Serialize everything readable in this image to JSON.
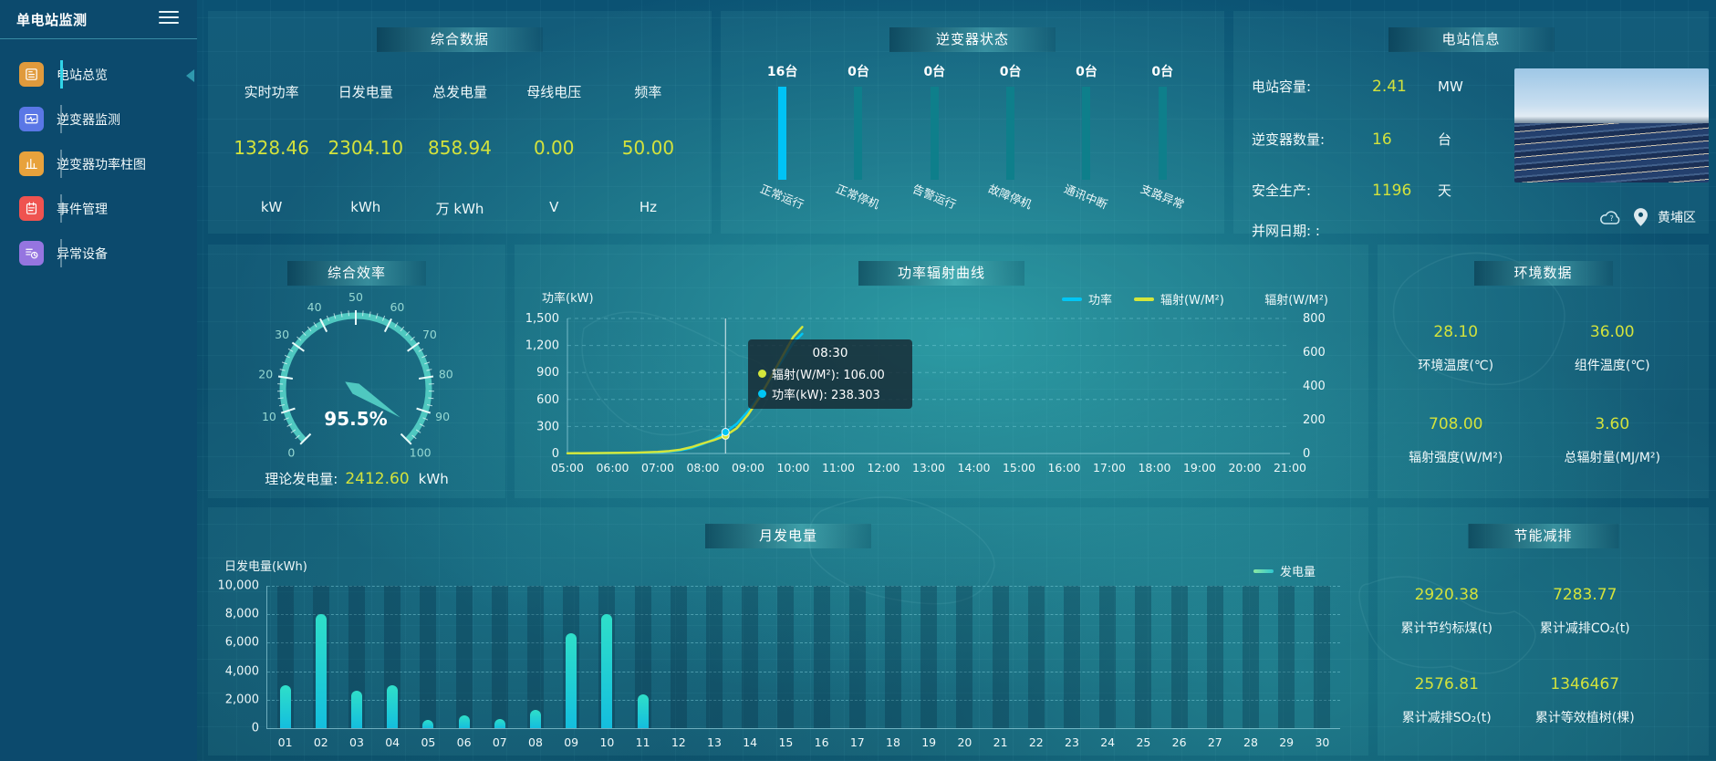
{
  "app": {
    "title": "单电站监测"
  },
  "theme": {
    "value_yellow": "#d3e23c",
    "accent_cyan": "#00c3f6",
    "gauge_teal": "#4fc8c0",
    "bar_cyan_top": "#2fdfc9",
    "bar_cyan_bottom": "#14bede"
  },
  "sidebar": {
    "items": [
      {
        "label": "电站总览",
        "icon": "overview-icon",
        "color": "#e09a3c",
        "active": true
      },
      {
        "label": "逆变器监测",
        "icon": "inverter-monitor-icon",
        "color": "#5a77e6",
        "active": false
      },
      {
        "label": "逆变器功率柱图",
        "icon": "power-bars-icon",
        "color": "#e8a23c",
        "active": false
      },
      {
        "label": "事件管理",
        "icon": "events-icon",
        "color": "#ef5350",
        "active": false
      },
      {
        "label": "异常设备",
        "icon": "abnormal-devices-icon",
        "color": "#9575e0",
        "active": false
      }
    ]
  },
  "summary": {
    "title": "综合数据",
    "metrics": [
      {
        "label": "实时功率",
        "value": "1328.46",
        "unit": "kW"
      },
      {
        "label": "日发电量",
        "value": "2304.10",
        "unit": "kWh"
      },
      {
        "label": "总发电量",
        "value": "858.94",
        "unit": "万 kWh"
      },
      {
        "label": "母线电压",
        "value": "0.00",
        "unit": "V"
      },
      {
        "label": "频率",
        "value": "50.00",
        "unit": "Hz"
      }
    ]
  },
  "inverter_status": {
    "title": "逆变器状态",
    "unit_suffix": "台",
    "chart_data": {
      "type": "bar",
      "categories": [
        "正常运行",
        "正常停机",
        "告警运行",
        "故障停机",
        "通讯中断",
        "支路异常"
      ],
      "values": [
        16,
        0,
        0,
        0,
        0,
        0
      ],
      "active_color": "#00c3f6",
      "inactive_color": "#0e7f8b"
    }
  },
  "station_info": {
    "title": "电站信息",
    "rows": [
      {
        "label": "电站容量:",
        "value": "2.41",
        "unit": "MW"
      },
      {
        "label": "逆变器数量:",
        "value": "16",
        "unit": "台"
      },
      {
        "label": "安全生产:",
        "value": "1196",
        "unit": "天"
      },
      {
        "label": "并网日期: :",
        "value": "",
        "unit": ""
      }
    ],
    "location": "黄埔区"
  },
  "efficiency": {
    "title": "综合效率",
    "chart_data": {
      "type": "gauge",
      "value": 95.5,
      "display": "95.5%",
      "min": 0,
      "max": 100,
      "tick_labels": [
        0,
        10,
        20,
        30,
        40,
        50,
        60,
        70,
        80,
        90,
        100
      ]
    },
    "theory": {
      "label": "理论发电量:",
      "value": "2412.60",
      "unit": "kWh"
    }
  },
  "power_curve": {
    "title": "功率辐射曲线",
    "chart_data": {
      "type": "line",
      "x_ticks": [
        "05:00",
        "06:00",
        "07:00",
        "08:00",
        "09:00",
        "10:00",
        "11:00",
        "12:00",
        "13:00",
        "14:00",
        "15:00",
        "16:00",
        "17:00",
        "18:00",
        "19:00",
        "20:00",
        "21:00"
      ],
      "left_axis": {
        "label": "功率(kW)",
        "min": 0,
        "max": 1500,
        "step": 300
      },
      "right_axis": {
        "label": "辐射(W/M²)",
        "min": 0,
        "max": 800,
        "step": 200
      },
      "legend": [
        "功率",
        "辐射(W/M²)"
      ],
      "series": [
        {
          "name": "功率",
          "color": "#00c6f5",
          "axis": "left",
          "hours": [
            5,
            5.5,
            6,
            6.5,
            7,
            7.25,
            7.5,
            7.75,
            8,
            8.25,
            8.5,
            8.75,
            9,
            9.25,
            9.5,
            9.75,
            10,
            10.2
          ],
          "values": [
            2,
            3,
            5,
            8,
            14,
            22,
            35,
            60,
            105,
            160,
            238.3,
            330,
            470,
            640,
            830,
            1030,
            1230,
            1330
          ]
        },
        {
          "name": "辐射(W/M²)",
          "color": "#d4e63b",
          "axis": "right",
          "hours": [
            5,
            5.5,
            6,
            6.5,
            7,
            7.25,
            7.5,
            7.75,
            8,
            8.25,
            8.5,
            8.75,
            9,
            9.25,
            9.5,
            9.75,
            10,
            10.2
          ],
          "values": [
            1,
            2,
            3,
            5,
            9,
            14,
            22,
            38,
            60,
            80,
            106,
            150,
            230,
            330,
            450,
            570,
            690,
            750
          ]
        }
      ]
    },
    "tooltip": {
      "time": "08:30",
      "hour": 8.5,
      "items": [
        {
          "name": "辐射(W/M²)",
          "value": "106.00",
          "color": "#d4e63b",
          "raw": 106
        },
        {
          "name": "功率(kW)",
          "value": "238.303",
          "color": "#00c6f5",
          "raw": 238.303
        }
      ]
    }
  },
  "environment": {
    "title": "环境数据",
    "metrics": [
      {
        "value": "28.10",
        "label": "环境温度(℃)"
      },
      {
        "value": "36.00",
        "label": "组件温度(℃)"
      },
      {
        "value": "708.00",
        "label": "辐射强度(W/M²)"
      },
      {
        "value": "3.60",
        "label": "总辐射量(MJ/M²)"
      }
    ]
  },
  "monthly": {
    "title": "月发电量",
    "chart_data": {
      "type": "bar",
      "ylabel": "日发电量(kWh)",
      "ylim": [
        0,
        10000
      ],
      "ytick_step": 2000,
      "legend": "发电量",
      "categories": [
        "01",
        "02",
        "03",
        "04",
        "05",
        "06",
        "07",
        "08",
        "09",
        "10",
        "11",
        "12",
        "13",
        "14",
        "15",
        "16",
        "17",
        "18",
        "19",
        "20",
        "21",
        "22",
        "23",
        "24",
        "25",
        "26",
        "27",
        "28",
        "29",
        "30"
      ],
      "values": [
        3000,
        8000,
        2600,
        3000,
        600,
        900,
        650,
        1300,
        6700,
        8000,
        2400,
        0,
        0,
        0,
        0,
        0,
        0,
        0,
        0,
        0,
        0,
        0,
        0,
        0,
        0,
        0,
        0,
        0,
        0,
        0
      ]
    }
  },
  "saving": {
    "title": "节能减排",
    "metrics": [
      {
        "value": "2920.38",
        "label": "累计节约标煤(t)"
      },
      {
        "value": "7283.77",
        "label": "累计减排CO₂(t)"
      },
      {
        "value": "2576.81",
        "label": "累计减排SO₂(t)"
      },
      {
        "value": "1346467",
        "label": "累计等效植树(棵)"
      }
    ]
  }
}
